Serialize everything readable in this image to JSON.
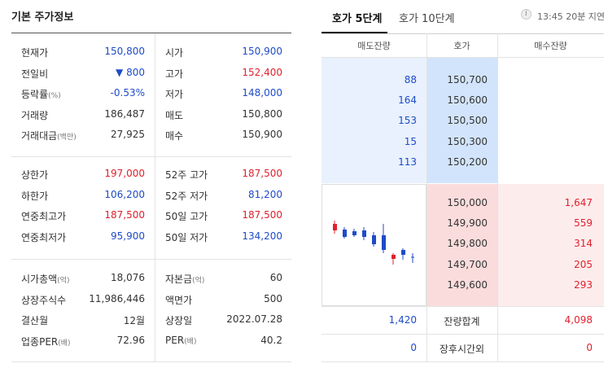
{
  "left": {
    "title": "기본 주가정보",
    "groups": [
      [
        {
          "l1": "현재가",
          "v1": "150,800",
          "c1": "blue",
          "l2": "시가",
          "v2": "150,900",
          "c2": "blue"
        },
        {
          "l1": "전일비",
          "v1": "▼ 800",
          "c1": "blue",
          "l2": "고가",
          "v2": "152,400",
          "c2": "red"
        },
        {
          "l1": "등락률",
          "u1": "(%)",
          "v1": "-0.53%",
          "c1": "blue",
          "l2": "저가",
          "v2": "148,000",
          "c2": "blue"
        },
        {
          "l1": "거래량",
          "v1": "186,487",
          "c1": "dark",
          "l2": "매도",
          "v2": "150,800",
          "c2": "dark"
        },
        {
          "l1": "거래대금",
          "u1": "(백만)",
          "v1": "27,925",
          "c1": "dark",
          "l2": "매수",
          "v2": "150,900",
          "c2": "dark"
        }
      ],
      [
        {
          "l1": "상한가",
          "v1": "197,000",
          "c1": "red",
          "l2": "52주 고가",
          "v2": "187,500",
          "c2": "red"
        },
        {
          "l1": "하한가",
          "v1": "106,200",
          "c1": "blue",
          "l2": "52주 저가",
          "v2": "81,200",
          "c2": "blue"
        },
        {
          "l1": "연중최고가",
          "v1": "187,500",
          "c1": "red",
          "l2": "50일 고가",
          "v2": "187,500",
          "c2": "red"
        },
        {
          "l1": "연중최저가",
          "v1": "95,900",
          "c1": "blue",
          "l2": "50일 저가",
          "v2": "134,200",
          "c2": "blue"
        }
      ],
      [
        {
          "l1": "시가총액",
          "u1": "(억)",
          "v1": "18,076",
          "c1": "dark",
          "l2": "자본금",
          "u2": "(억)",
          "v2": "60",
          "c2": "dark"
        },
        {
          "l1": "상장주식수",
          "v1": "11,986,446",
          "c1": "dark",
          "l2": "액면가",
          "v2": "500",
          "c2": "dark"
        },
        {
          "l1": "결산월",
          "v1": "12월",
          "c1": "dark",
          "l2": "상장일",
          "v2": "2022.07.28",
          "c2": "dark"
        },
        {
          "l1": "업종PER",
          "u1": "(배)",
          "v1": "72.96",
          "c1": "dark",
          "l2": "PER",
          "u2": "(배)",
          "v2": "40.2",
          "c2": "dark"
        }
      ]
    ]
  },
  "right": {
    "tabs": [
      {
        "label": "호가 5단계",
        "active": true
      },
      {
        "label": "호가 10단계",
        "active": false
      }
    ],
    "info_icon": "info-icon",
    "delay_note": "13:45 20분 지연",
    "headers": [
      "매도잔량",
      "호가",
      "매수잔량"
    ],
    "asks": [
      {
        "qty": "88",
        "price": "150,700"
      },
      {
        "qty": "164",
        "price": "150,600"
      },
      {
        "qty": "153",
        "price": "150,500"
      },
      {
        "qty": "15",
        "price": "150,300"
      },
      {
        "qty": "113",
        "price": "150,200"
      }
    ],
    "bids": [
      {
        "price": "150,000",
        "qty": "1,647"
      },
      {
        "price": "149,900",
        "qty": "559"
      },
      {
        "price": "149,800",
        "qty": "314"
      },
      {
        "price": "149,700",
        "qty": "205"
      },
      {
        "price": "149,600",
        "qty": "293"
      }
    ],
    "total": {
      "ask": "1,420",
      "label": "잔량합계",
      "bid": "4,098"
    },
    "after_hours": {
      "ask": "0",
      "label": "장후시간외",
      "bid": "0"
    }
  },
  "colors": {
    "red": "#e0212d",
    "blue": "#1f4bc8",
    "ask_bg": "#e8f1fd",
    "ask_price_bg": "#d2e4fb",
    "bid_bg": "#fdecec",
    "bid_price_bg": "#fbdcdc"
  }
}
